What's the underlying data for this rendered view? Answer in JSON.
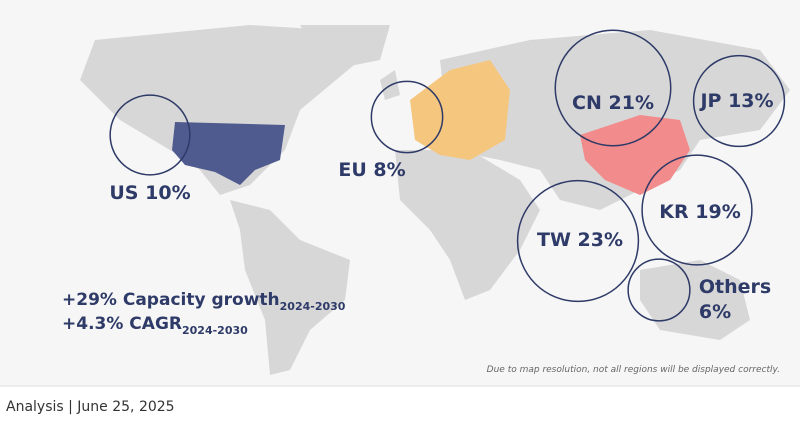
{
  "regions": [
    {
      "name": "US",
      "value": 10,
      "value_label": "10%"
    },
    {
      "name": "EU",
      "value": 8,
      "value_label": "8%"
    },
    {
      "name": "CN",
      "value": 21,
      "value_label": "21%"
    },
    {
      "name": "JP",
      "value": 13,
      "value_label": "13%"
    },
    {
      "name": "KR",
      "value": 19,
      "value_label": "19%"
    },
    {
      "name": "TW",
      "value": 23,
      "value_label": "23%"
    },
    {
      "name": "Others",
      "value": 6,
      "value_label": "6%"
    }
  ],
  "growth": [
    {
      "text": "+29% Capacity growth",
      "period": "2024-2030"
    },
    {
      "text": "+4.3% CAGR",
      "period": "2024-2030"
    }
  ],
  "note": "Due to map resolution, not all regions will be displayed correctly.",
  "footer": "Analysis | June 25, 2025"
}
